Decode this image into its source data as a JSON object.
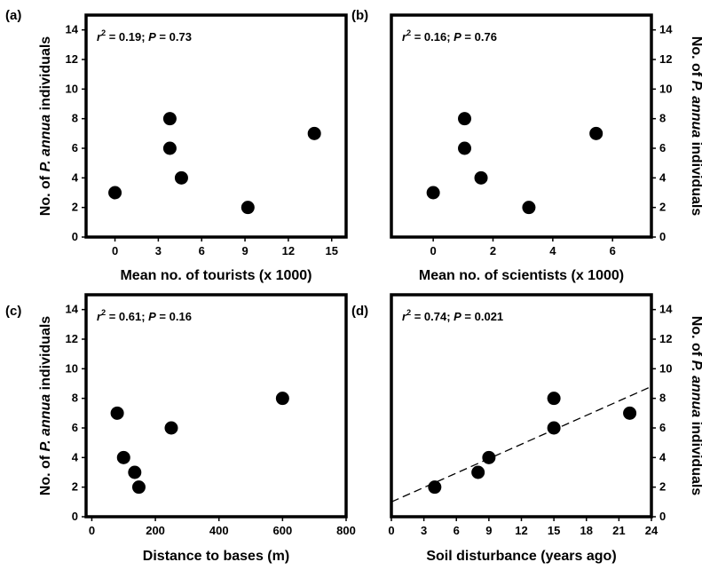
{
  "figure": {
    "y_label": "No. of P. annua individuals",
    "y_label_parts": [
      "No. of ",
      "P. annua",
      " individuals"
    ]
  },
  "chart_data": [
    {
      "type": "scatter",
      "panel_label": "(a)",
      "stat_text": [
        "r",
        "2",
        " = 0.19; ",
        "P",
        " = 0.73"
      ],
      "xlabel": "Mean no. of tourists (x 1000)",
      "ylabel": "No. of P. annua individuals",
      "xlim": [
        -2,
        16
      ],
      "ylim": [
        0,
        15
      ],
      "xticks": [
        "0",
        "3",
        "6",
        "9",
        "12",
        "15"
      ],
      "yticks": [
        "0",
        "2",
        "4",
        "6",
        "8",
        "10",
        "12",
        "14"
      ],
      "y_axis_side": "left",
      "points": [
        {
          "x": 0,
          "y": 3
        },
        {
          "x": 3.8,
          "y": 8
        },
        {
          "x": 3.8,
          "y": 6
        },
        {
          "x": 4.6,
          "y": 4
        },
        {
          "x": 9.2,
          "y": 2
        },
        {
          "x": 13.8,
          "y": 7
        }
      ]
    },
    {
      "type": "scatter",
      "panel_label": "(b)",
      "stat_text": [
        "r",
        "2",
        " = 0.16; ",
        "P",
        " = 0.76"
      ],
      "xlabel": "Mean no. of scientists (x 1000)",
      "ylabel": "No. of P. annua individuals",
      "xlim": [
        -1.4,
        7.3
      ],
      "ylim": [
        0,
        15
      ],
      "xticks": [
        "0",
        "2",
        "4",
        "6"
      ],
      "yticks": [
        "0",
        "2",
        "4",
        "6",
        "8",
        "10",
        "12",
        "14"
      ],
      "y_axis_side": "right",
      "points": [
        {
          "x": 0,
          "y": 3
        },
        {
          "x": 1.05,
          "y": 8
        },
        {
          "x": 1.05,
          "y": 6
        },
        {
          "x": 1.6,
          "y": 4
        },
        {
          "x": 3.2,
          "y": 2
        },
        {
          "x": 5.45,
          "y": 7
        }
      ]
    },
    {
      "type": "scatter",
      "panel_label": "(c)",
      "stat_text": [
        "r",
        "2",
        " = 0.61; ",
        "P",
        " = 0.16"
      ],
      "xlabel": "Distance to bases (m)",
      "ylabel": "No. of P. annua individuals",
      "xlim": [
        -18,
        800
      ],
      "ylim": [
        0,
        15
      ],
      "xticks": [
        "0",
        "200",
        "400",
        "600",
        "800"
      ],
      "yticks": [
        "0",
        "2",
        "4",
        "6",
        "8",
        "10",
        "12",
        "14"
      ],
      "y_axis_side": "left",
      "points": [
        {
          "x": 80,
          "y": 7
        },
        {
          "x": 100,
          "y": 4
        },
        {
          "x": 135,
          "y": 3
        },
        {
          "x": 148,
          "y": 2
        },
        {
          "x": 250,
          "y": 6
        },
        {
          "x": 600,
          "y": 8
        }
      ]
    },
    {
      "type": "scatter",
      "panel_label": "(d)",
      "stat_text": [
        "r",
        "2",
        " = 0.74; ",
        "P",
        " = 0.021"
      ],
      "xlabel": "Soil disturbance (years ago)",
      "ylabel": "No. of P. annua individuals",
      "xlim": [
        0,
        24
      ],
      "ylim": [
        0,
        15
      ],
      "xticks": [
        "0",
        "3",
        "6",
        "9",
        "12",
        "15",
        "18",
        "21",
        "24"
      ],
      "yticks": [
        "0",
        "2",
        "4",
        "6",
        "8",
        "10",
        "12",
        "14"
      ],
      "y_axis_side": "right",
      "points": [
        {
          "x": 4,
          "y": 2
        },
        {
          "x": 8,
          "y": 3
        },
        {
          "x": 9,
          "y": 4
        },
        {
          "x": 15,
          "y": 8
        },
        {
          "x": 15,
          "y": 6
        },
        {
          "x": 22,
          "y": 7
        }
      ],
      "trendline": {
        "style": "dashed",
        "x": [
          0,
          24
        ],
        "y": [
          1.0,
          8.8
        ]
      }
    }
  ]
}
